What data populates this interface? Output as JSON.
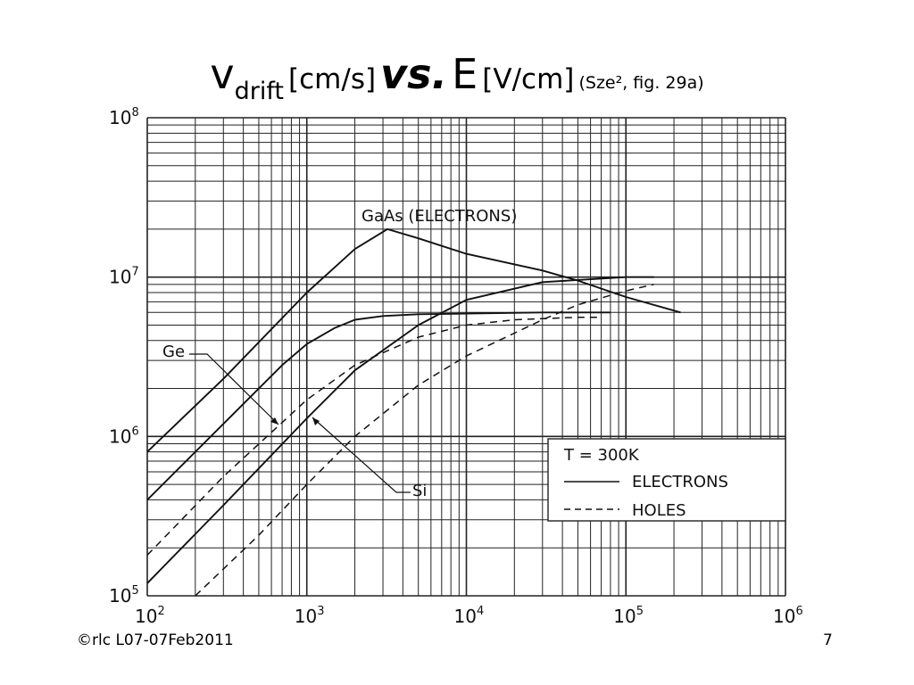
{
  "slide": {
    "title": {
      "v": "v",
      "v_sub": "drift",
      "v_unit": "[cm/s]",
      "vs": "vs.",
      "e": "E",
      "e_unit": "[V/cm]",
      "reference": "(Sze², fig. 29a)"
    },
    "footer_left": "©rlc L07-07Feb2011",
    "page_number": "7"
  },
  "chart_data": {
    "type": "line",
    "title": "",
    "xlabel": "",
    "ylabel": "",
    "xscale": "log",
    "yscale": "log",
    "xlim": [
      100,
      1000000
    ],
    "ylim": [
      100000,
      100000000
    ],
    "grid": true,
    "x_ticks": [
      {
        "base": "10",
        "exp": "2",
        "value": 100
      },
      {
        "base": "10",
        "exp": "3",
        "value": 1000
      },
      {
        "base": "10",
        "exp": "4",
        "value": 10000
      },
      {
        "base": "10",
        "exp": "5",
        "value": 100000
      },
      {
        "base": "10",
        "exp": "6",
        "value": 1000000
      }
    ],
    "y_ticks": [
      {
        "base": "10",
        "exp": "5",
        "value": 100000
      },
      {
        "base": "10",
        "exp": "6",
        "value": 1000000
      },
      {
        "base": "10",
        "exp": "7",
        "value": 10000000
      },
      {
        "base": "10",
        "exp": "8",
        "value": 100000000
      }
    ],
    "legend": {
      "position": "bottom-right",
      "header": "T = 300K",
      "entries": [
        {
          "label": "ELECTRONS",
          "style": "solid"
        },
        {
          "label": "HOLES",
          "style": "dashed"
        }
      ]
    },
    "annotations": [
      {
        "text": "GaAs (ELECTRONS)",
        "points_to": "GaAs electrons"
      },
      {
        "text": "Ge",
        "points_to": "Ge electrons and holes"
      },
      {
        "text": "Si",
        "points_to": "Si electrons and holes"
      }
    ],
    "series": [
      {
        "key": "gaas_e",
        "style": "solid",
        "points": [
          [
            100,
            800000
          ],
          [
            300,
            2300000
          ],
          [
            1000,
            8000000
          ],
          [
            2000,
            15000000
          ],
          [
            3200,
            20000000
          ],
          [
            5000,
            17500000
          ],
          [
            10000,
            14000000
          ],
          [
            30000,
            11000000
          ],
          [
            50000,
            9500000
          ],
          [
            100000,
            7500000
          ],
          [
            220000,
            6000000
          ]
        ]
      },
      {
        "key": "ge_e",
        "style": "solid",
        "points": [
          [
            100,
            400000
          ],
          [
            300,
            1200000
          ],
          [
            700,
            2800000
          ],
          [
            1000,
            3800000
          ],
          [
            1500,
            4800000
          ],
          [
            2000,
            5400000
          ],
          [
            3000,
            5700000
          ],
          [
            5000,
            5850000
          ],
          [
            10000,
            5900000
          ],
          [
            30000,
            6000000
          ],
          [
            80000,
            6000000
          ]
        ]
      },
      {
        "key": "ge_h",
        "style": "dashed",
        "points": [
          [
            100,
            180000
          ],
          [
            300,
            560000
          ],
          [
            1000,
            1700000
          ],
          [
            2000,
            2800000
          ],
          [
            5000,
            4200000
          ],
          [
            10000,
            5000000
          ],
          [
            20000,
            5400000
          ],
          [
            50000,
            5600000
          ],
          [
            70000,
            5600000
          ]
        ]
      },
      {
        "key": "si_e",
        "style": "solid",
        "points": [
          [
            100,
            120000
          ],
          [
            300,
            370000
          ],
          [
            1000,
            1300000
          ],
          [
            2000,
            2600000
          ],
          [
            5000,
            5000000
          ],
          [
            10000,
            7200000
          ],
          [
            30000,
            9300000
          ],
          [
            100000,
            10000000
          ],
          [
            150000,
            10000000
          ]
        ]
      },
      {
        "key": "si_h",
        "style": "dashed",
        "points": [
          [
            200,
            100000
          ],
          [
            500,
            240000
          ],
          [
            1000,
            500000
          ],
          [
            2000,
            1000000
          ],
          [
            5000,
            2100000
          ],
          [
            10000,
            3200000
          ],
          [
            30000,
            5400000
          ],
          [
            50000,
            6700000
          ],
          [
            100000,
            8200000
          ],
          [
            150000,
            9000000
          ]
        ]
      }
    ]
  }
}
